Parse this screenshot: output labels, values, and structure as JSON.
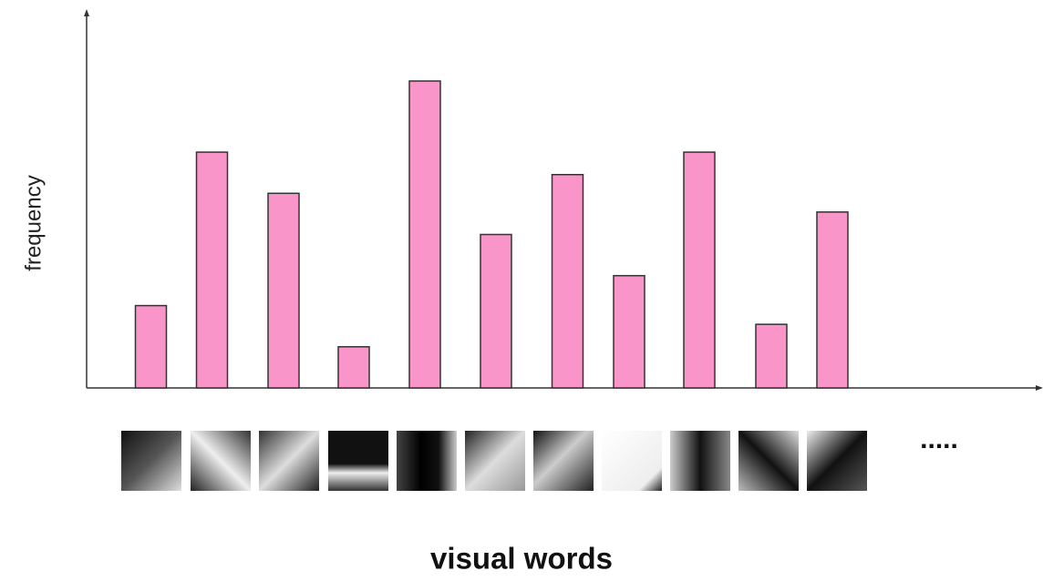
{
  "chart_data": {
    "type": "bar",
    "x_label": "visual words",
    "y_label": "frequency",
    "ellipsis": ".....",
    "categories": [
      null,
      null,
      null,
      null,
      null,
      null,
      null,
      null,
      null,
      null,
      null
    ],
    "values": [
      22,
      63,
      52,
      11,
      82,
      41,
      57,
      30,
      63,
      17,
      47
    ],
    "color": "#f995c8",
    "ylim": [
      0,
      100
    ]
  }
}
